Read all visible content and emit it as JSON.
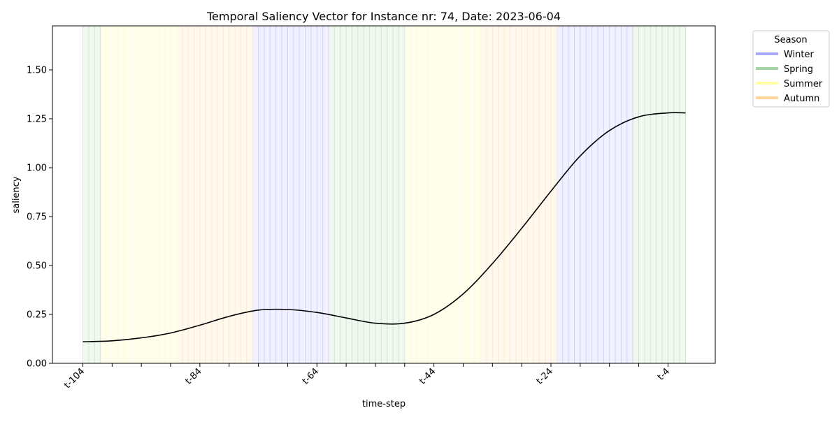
{
  "chart_data": {
    "type": "line",
    "title": "Temporal Saliency Vector for Instance nr: 74, Date: 2023-06-04",
    "xlabel": "time-step",
    "ylabel": "saliency",
    "x_range": [
      -104,
      -1
    ],
    "ylim": [
      0,
      1.725
    ],
    "y_ticks": [
      0.0,
      0.25,
      0.5,
      0.75,
      1.0,
      1.25,
      1.5
    ],
    "y_tick_labels": [
      "0.00",
      "0.25",
      "0.50",
      "0.75",
      "1.00",
      "1.25",
      "1.50"
    ],
    "x_ticks": [
      -104,
      -99,
      -94,
      -89,
      -84,
      -79,
      -74,
      -69,
      -64,
      -59,
      -54,
      -49,
      -44,
      -39,
      -34,
      -29,
      -24,
      -19,
      -14,
      -9,
      -4
    ],
    "x_tick_labels": [
      "t-104",
      "",
      "",
      "",
      "t-84",
      "",
      "",
      "",
      "t-64",
      "",
      "",
      "",
      "t-44",
      "",
      "",
      "",
      "t-24",
      "",
      "",
      "",
      "t-4"
    ],
    "grid": false,
    "line_color": "#000000",
    "series": [
      {
        "x": [
          -104,
          -99,
          -94,
          -89,
          -84,
          -79,
          -74,
          -69,
          -64,
          -59,
          -54,
          -49,
          -44,
          -39,
          -34,
          -29,
          -24,
          -19,
          -14,
          -9,
          -4,
          -1
        ],
        "values": [
          0.11,
          0.115,
          0.13,
          0.155,
          0.195,
          0.24,
          0.272,
          0.275,
          0.26,
          0.232,
          0.205,
          0.205,
          0.25,
          0.355,
          0.51,
          0.69,
          0.88,
          1.06,
          1.19,
          1.26,
          1.28,
          1.28
        ]
      }
    ],
    "season_bands": [
      {
        "season": "Spring",
        "start": -104,
        "end": -101
      },
      {
        "season": "Summer",
        "start": -101,
        "end": -88
      },
      {
        "season": "Autumn",
        "start": -88,
        "end": -75
      },
      {
        "season": "Winter",
        "start": -75,
        "end": -62
      },
      {
        "season": "Spring",
        "start": -62,
        "end": -49
      },
      {
        "season": "Summer",
        "start": -49,
        "end": -36
      },
      {
        "season": "Autumn",
        "start": -36,
        "end": -23
      },
      {
        "season": "Winter",
        "start": -23,
        "end": -10
      },
      {
        "season": "Spring",
        "start": -10,
        "end": -1
      }
    ],
    "season_colors": {
      "Winter": "#aaaaff",
      "Spring": "#a4d3a4",
      "Summer": "#ffffa0",
      "Autumn": "#ffd699"
    },
    "legend": {
      "title": "Season",
      "placement": "outside top-right",
      "entries": [
        "Winter",
        "Spring",
        "Summer",
        "Autumn"
      ]
    }
  }
}
